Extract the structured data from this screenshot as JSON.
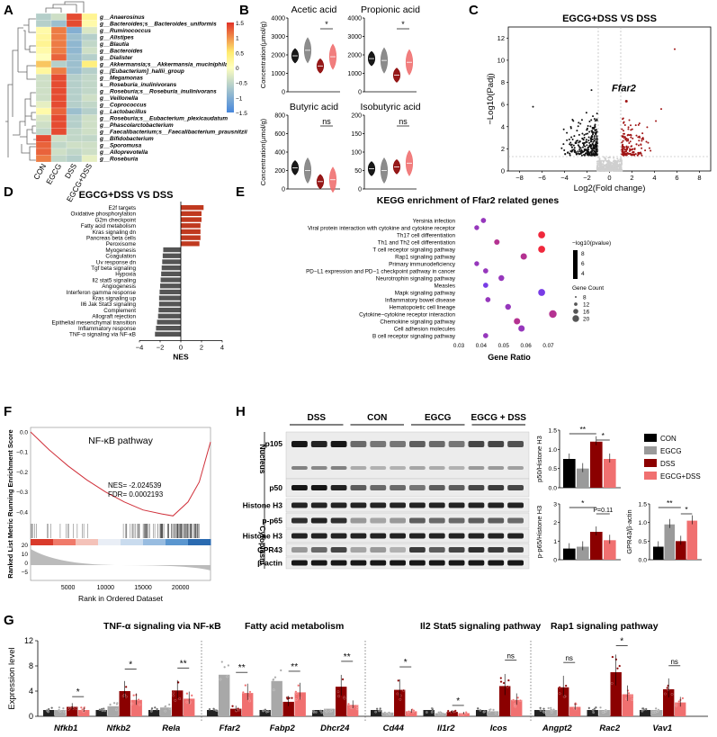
{
  "chart_data": [
    {
      "panel": "A",
      "type": "heatmap",
      "columns": [
        "CON",
        "EGCG",
        "DSS",
        "EGCG+DSS"
      ],
      "rows": [
        "g__Anaerosinus",
        "g__Bacteroides;s__Bacteroides_uniformis",
        "g__Ruminococcus",
        "g__Alistipes",
        "g__Blautia",
        "g__Bacteroides",
        "g__Dialister",
        "g__Akkermansia;s__Akkermansia_muciniphila",
        "g__[Eubacterium]_hallii_group",
        "g__Megamonas",
        "s__Roseburia_inulinivorans",
        "g__Roseburia;s__Roseburia_inulinivorans",
        "g__Veillonella",
        "g__Coprococcus",
        "g__Lactobacillus",
        "g__Roseburia;s__Eubacterium_plexicaudatum",
        "g__Phascolarctobacterium",
        "g__Faecalibacterium;s__Faecalibacterium_prausnitzii",
        "g__Bifidobacterium",
        "g__Sporomusa",
        "g__Alloprevotella",
        "g__Roseburia"
      ],
      "values": [
        [
          -0.6,
          -0.4,
          1.4,
          0.4
        ],
        [
          -0.6,
          -0.8,
          1.4,
          0.2
        ],
        [
          0.2,
          1.2,
          -1.0,
          -0.3
        ],
        [
          0.3,
          1.2,
          -0.8,
          -0.6
        ],
        [
          0.4,
          1.2,
          -0.9,
          -0.5
        ],
        [
          0.2,
          1.2,
          -0.9,
          -0.4
        ],
        [
          0.0,
          1.3,
          -0.8,
          -0.6
        ],
        [
          0.9,
          -0.6,
          -0.8,
          0.6
        ],
        [
          0.3,
          1.2,
          -0.8,
          -0.6
        ],
        [
          -0.4,
          1.4,
          -0.6,
          -0.5
        ],
        [
          -0.4,
          1.4,
          -0.6,
          -0.5
        ],
        [
          -0.4,
          1.4,
          -0.6,
          -0.5
        ],
        [
          -0.4,
          1.4,
          -0.6,
          -0.4
        ],
        [
          -0.2,
          1.4,
          -0.6,
          -0.5
        ],
        [
          0.2,
          1.3,
          -0.8,
          -0.6
        ],
        [
          -0.3,
          1.4,
          -0.6,
          -0.4
        ],
        [
          -0.4,
          1.4,
          -0.6,
          -0.4
        ],
        [
          -0.5,
          1.4,
          -0.5,
          -0.4
        ],
        [
          1.4,
          -0.4,
          -0.5,
          -0.5
        ],
        [
          1.3,
          -0.5,
          -0.4,
          -0.4
        ],
        [
          1.3,
          -0.4,
          -0.5,
          -0.4
        ],
        [
          1.2,
          -0.5,
          -0.6,
          -0.2
        ]
      ],
      "colorbar_ticks": [
        "1.5",
        "1",
        "0.5",
        "0",
        "−0.5",
        "−1",
        "−1.5"
      ]
    },
    {
      "panel": "B",
      "type": "violin",
      "groups": [
        "CON",
        "EGCG",
        "DSS",
        "EGCG+DSS"
      ],
      "colors": [
        "#000000",
        "#808080",
        "#8b0000",
        "#f07070"
      ],
      "ylabel": "Concentration(μmol/g)",
      "subplots": [
        {
          "title": "Acetic acid",
          "ylim": [
            0,
            4000
          ],
          "yticks": [
            "0",
            "1000",
            "2000",
            "3000",
            "4000"
          ],
          "medians": [
            1950,
            2250,
            1400,
            1900
          ],
          "sig": "*"
        },
        {
          "title": "Propionic acid",
          "ylim": [
            0,
            4000
          ],
          "yticks": [
            "0",
            "1000",
            "2000",
            "3000",
            "4000"
          ],
          "medians": [
            1800,
            1700,
            900,
            1600
          ],
          "sig": "*"
        },
        {
          "title": "Butyric acid",
          "ylim": [
            0,
            800
          ],
          "yticks": [
            "0",
            "200",
            "400",
            "600",
            "800"
          ],
          "medians": [
            230,
            200,
            80,
            100
          ],
          "sig": "ns"
        },
        {
          "title": "Isobutyric acid",
          "ylim": [
            0,
            200
          ],
          "yticks": [
            "0",
            "50",
            "100",
            "150",
            "200"
          ],
          "medians": [
            55,
            50,
            60,
            70
          ],
          "sig": "ns"
        }
      ]
    },
    {
      "panel": "C",
      "type": "scatter",
      "title": "EGCG+DSS VS DSS",
      "xlabel": "Log2(Fold change)",
      "ylabel": "−Log10(Padj)",
      "xlim": [
        -9,
        9
      ],
      "ylim": [
        0,
        13
      ],
      "xticks": [
        "−8",
        "−6",
        "−4",
        "−2",
        "0",
        "2",
        "4",
        "6",
        "8"
      ],
      "yticks": [
        "0",
        "2",
        "4",
        "6",
        "8",
        "10",
        "12"
      ],
      "annotation": "Ffar2",
      "thresholds": {
        "log2fc": 1,
        "padj_log10": 1.3
      },
      "series": [
        {
          "name": "down",
          "color": "#111111"
        },
        {
          "name": "ns",
          "color": "#cfcfcf"
        },
        {
          "name": "up",
          "color": "#a01515"
        }
      ]
    },
    {
      "panel": "D",
      "type": "bar",
      "orientation": "horizontal",
      "title": "EGCG+DSS VS DSS",
      "xlabel": "NES",
      "xlim": [
        -4,
        4
      ],
      "xticks": [
        "−4",
        "−2",
        "0",
        "2",
        "4"
      ],
      "categories": [
        "E2f targets",
        "Oxidative phosphorylation",
        "G2m checkpoint",
        "Fatty acid metabolism",
        "Kras signaling dn",
        "Pancreas beta cells",
        "Peroxisome",
        "Myogenesis",
        "Coagulation",
        "Uv response dn",
        "Tgf beta signaling",
        "Hypoxia",
        "Il2 stat5 signaling",
        "Angiogenesis",
        "Interferon gamma response",
        "Kras signaling up",
        "Il6 Jak Stat3 signaling",
        "Complement",
        "Allograft rejection",
        "Epithelial mesenchymal transition",
        "Inflammatory response",
        "TNF-α signaling via NF-κB"
      ],
      "values": [
        2.2,
        2.0,
        2.0,
        1.9,
        1.9,
        1.9,
        1.8,
        -1.7,
        -1.75,
        -1.8,
        -1.85,
        -1.9,
        -1.95,
        -2.0,
        -2.05,
        -2.1,
        -2.1,
        -2.15,
        -2.2,
        -2.3,
        -2.4,
        -2.5
      ]
    },
    {
      "panel": "E",
      "type": "scatter",
      "title": "KEGG enrichment of Ffar2 related genes",
      "xlabel": "Gene Ratio",
      "xlim": [
        0.03,
        0.07
      ],
      "xticks": [
        "0.03",
        "0.04",
        "0.05",
        "0.06",
        "0.07"
      ],
      "categories": [
        "Yersinia infection",
        "Viral protein interaction with cytokine and cytokine receptor",
        "Th17 cell differentiation",
        "Th1 and Th2 cell differentiation",
        "T cell receptor signaling pathway",
        "Rap1 signaling pathway",
        "Primary immunodeficiency",
        "PD−L1 expression and PD−1 checkpoint pathway in cancer",
        "Neurotrophin signaling pathway",
        "Measles",
        "Mapk signaling pathway",
        "Inflammatory bowel disease",
        "Hematopoietic cell lineage",
        "Cytokine−cytokine receptor interaction",
        "Chemokine signaling pathway",
        "Cell adhesion molecules",
        "B cell receptor signaling pathway"
      ],
      "gene_ratio": [
        0.041,
        0.038,
        0.067,
        0.047,
        0.067,
        0.059,
        0.038,
        0.042,
        0.049,
        0.042,
        0.067,
        0.043,
        0.052,
        0.072,
        0.056,
        0.058,
        0.042
      ],
      "gene_count": [
        10,
        9,
        16,
        11,
        16,
        14,
        9,
        10,
        12,
        10,
        16,
        10,
        12,
        18,
        14,
        14,
        10
      ],
      "neglog10p": [
        5,
        5,
        8,
        6,
        8,
        6,
        5,
        5,
        5,
        4,
        4,
        5,
        5,
        6,
        6,
        5,
        5
      ],
      "legend": {
        "color_title": "−log10(pvalue)",
        "color_ticks": [
          "8",
          "6",
          "4"
        ],
        "size_title": "Gene Count",
        "size_ticks": [
          "8",
          "12",
          "16",
          "20"
        ]
      }
    },
    {
      "panel": "F",
      "type": "line",
      "title": "NF-κB pathway",
      "ylabel": "Ranked List Metric Running Enrichment Score",
      "xlabel": "Rank in Ordered Dataset",
      "xticks": [
        "5000",
        "10000",
        "15000",
        "20000"
      ],
      "yticks_top": [
        "0.0",
        "−0.1",
        "−0.2",
        "−0.3",
        "−0.4"
      ],
      "yticks_bottom": [
        "20",
        "10",
        "0",
        "−5"
      ],
      "nes_text": "NES= -2.024539",
      "fdr_text": "FDR= 0.0002193",
      "x": [
        0,
        2500,
        5000,
        7500,
        10000,
        12500,
        15000,
        17500,
        19000,
        21000,
        22500,
        24000
      ],
      "y": [
        0.0,
        -0.09,
        -0.17,
        -0.24,
        -0.3,
        -0.35,
        -0.39,
        -0.41,
        -0.42,
        -0.35,
        -0.25,
        -0.05
      ]
    },
    {
      "panel": "H",
      "type": "bar",
      "blot_groups": [
        "DSS",
        "CON",
        "EGCG",
        "EGCG + DSS"
      ],
      "blot_rows": [
        "p105",
        "p50",
        "Histone H3",
        "p-p65",
        "Histone H3",
        "GPR43",
        "β-actin"
      ],
      "fractions": [
        "Nucleus",
        "Cytoplasm"
      ],
      "legend": [
        "CON",
        "EGCG",
        "DSS",
        "EGCG+DSS"
      ],
      "colors": [
        "#000000",
        "#9a9a9a",
        "#8b0000",
        "#f07070"
      ],
      "subplots": [
        {
          "ylabel": "p50/Histone H3",
          "ylim": [
            0,
            1.5
          ],
          "yticks": [
            "0.0",
            "0.5",
            "1.0",
            "1.5"
          ],
          "values": [
            0.75,
            0.5,
            1.2,
            0.75
          ],
          "sig": [
            "**",
            "*"
          ]
        },
        {
          "ylabel": "p-p65/Histone H3",
          "ylim": [
            0,
            3
          ],
          "yticks": [
            "0",
            "1",
            "2",
            "3"
          ],
          "values": [
            0.6,
            0.7,
            1.5,
            1.05
          ],
          "sig": [
            "*",
            "P=0.11"
          ]
        },
        {
          "ylabel": "GPR43/β-actin",
          "ylim": [
            0,
            1.5
          ],
          "yticks": [
            "0.0",
            "0.5",
            "1.0",
            "1.5"
          ],
          "values": [
            0.35,
            0.95,
            0.5,
            1.05
          ],
          "sig": [
            "**",
            "*"
          ]
        }
      ]
    },
    {
      "panel": "G",
      "type": "bar",
      "ylabel": "Expression level",
      "ylim": [
        0,
        12
      ],
      "yticks": [
        "0",
        "4",
        "8",
        "12"
      ],
      "group_titles": [
        "TNF-α signaling via NF-κB",
        "Fatty acid metabolism",
        "Il2 Stat5 signaling pathway",
        "Rap1 signaling pathway"
      ],
      "categories": [
        "Nfkb1",
        "Nfkb2",
        "Rela",
        "Ffar2",
        "Fabp2",
        "Dhcr24",
        "Cd44",
        "Il1r2",
        "Icos",
        "Angpt2",
        "Rac2",
        "Vav1"
      ],
      "group_of": [
        0,
        0,
        0,
        1,
        1,
        1,
        2,
        2,
        2,
        3,
        3,
        3
      ],
      "series_names": [
        "CON",
        "EGCG",
        "DSS",
        "EGCG+DSS"
      ],
      "values": [
        [
          1.0,
          1.0,
          1.5,
          1.0
        ],
        [
          1.0,
          1.6,
          4.0,
          2.6
        ],
        [
          1.0,
          1.4,
          4.1,
          2.8
        ],
        [
          1.0,
          6.6,
          1.2,
          3.7
        ],
        [
          1.0,
          5.6,
          2.3,
          3.8
        ],
        [
          1.0,
          1.2,
          4.7,
          1.8
        ],
        [
          1.0,
          0.6,
          4.2,
          0.8
        ],
        [
          1.0,
          0.5,
          0.7,
          0.5
        ],
        [
          1.0,
          0.8,
          4.8,
          2.6
        ],
        [
          1.0,
          1.0,
          4.6,
          1.5
        ],
        [
          1.0,
          1.0,
          7.0,
          3.5
        ],
        [
          1.0,
          1.0,
          4.3,
          2.2
        ]
      ],
      "sig": [
        "*",
        "*",
        "**",
        "**",
        "**",
        "**",
        "*",
        "*",
        "ns",
        "ns",
        "*",
        "ns"
      ],
      "colors": [
        "#222222",
        "#a8a8a8",
        "#8b0000",
        "#f07070"
      ]
    }
  ]
}
